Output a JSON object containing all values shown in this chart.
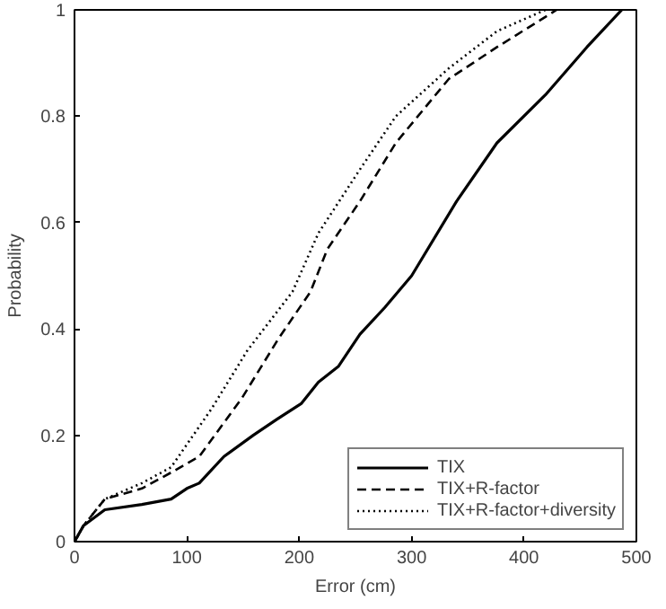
{
  "chart_data": {
    "type": "line",
    "xlabel": "Error (cm)",
    "ylabel": "Probability",
    "xlim": [
      0,
      500
    ],
    "ylim": [
      0,
      1
    ],
    "xticks": [
      0,
      100,
      200,
      300,
      400,
      500
    ],
    "yticks": [
      0,
      0.2,
      0.4,
      0.6,
      0.8,
      1
    ],
    "grid": false,
    "legend": "bottom right",
    "series": [
      {
        "name": "TIX",
        "color": "#000000",
        "line_style": "solid",
        "x": [
          0,
          8,
          27,
          60,
          86,
          100,
          111,
          133,
          159,
          180,
          202,
          217,
          235,
          254,
          276,
          300,
          340,
          376,
          419,
          456,
          487
        ],
        "values": [
          0,
          0.03,
          0.06,
          0.07,
          0.08,
          0.1,
          0.11,
          0.16,
          0.2,
          0.23,
          0.26,
          0.3,
          0.33,
          0.39,
          0.44,
          0.5,
          0.64,
          0.75,
          0.84,
          0.93,
          1.0
        ]
      },
      {
        "name": "TIX+R-factor",
        "color": "#000000",
        "line_style": "dashed",
        "x": [
          0,
          8,
          27,
          60,
          86,
          111,
          149,
          181,
          210,
          225,
          254,
          286,
          333,
          376,
          429
        ],
        "values": [
          0,
          0.03,
          0.08,
          0.1,
          0.13,
          0.16,
          0.27,
          0.38,
          0.47,
          0.55,
          0.64,
          0.75,
          0.87,
          0.93,
          1.0
        ]
      },
      {
        "name": "TIX+R-factor+diversity",
        "color": "#000000",
        "line_style": "dotted",
        "x": [
          0,
          8,
          27,
          60,
          86,
          122,
          154,
          194,
          217,
          254,
          286,
          333,
          376,
          419
        ],
        "values": [
          0,
          0.03,
          0.08,
          0.11,
          0.14,
          0.25,
          0.36,
          0.47,
          0.58,
          0.7,
          0.8,
          0.89,
          0.96,
          1.0
        ]
      }
    ]
  }
}
